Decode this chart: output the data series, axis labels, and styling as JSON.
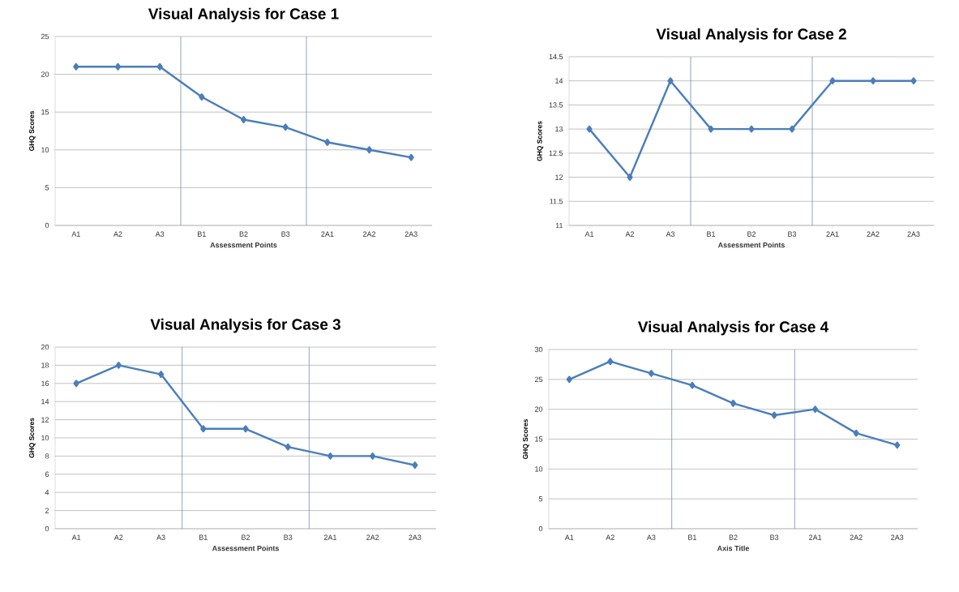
{
  "chart_data": [
    {
      "type": "line",
      "title": "Visual Analysis for Case 1",
      "xlabel": "Assessment Points",
      "ylabel": "GHQ Scores",
      "categories": [
        "A1",
        "A2",
        "A3",
        "B1",
        "B2",
        "B3",
        "2A1",
        "2A2",
        "2A3"
      ],
      "series": [
        {
          "color": "#4a7ebb",
          "values": [
            21,
            21,
            21,
            17,
            14,
            13,
            11,
            10,
            9
          ]
        }
      ],
      "ylim": [
        0,
        25
      ],
      "yticks": [
        0,
        5,
        10,
        15,
        20,
        25
      ],
      "grid": "y",
      "marker": "diamond",
      "line_style": "solid"
    },
    {
      "type": "line",
      "title": "Visual Analysis for Case 2",
      "xlabel": "Assessment Points",
      "ylabel": "GHQ Scores",
      "categories": [
        "A1",
        "A2",
        "A3",
        "B1",
        "B2",
        "B3",
        "2A1",
        "2A2",
        "2A3"
      ],
      "series": [
        {
          "color": "#4a7ebb",
          "values": [
            13,
            12,
            14,
            13,
            13,
            13,
            14,
            14,
            14
          ]
        }
      ],
      "ylim": [
        11,
        14.5
      ],
      "yticks": [
        11,
        11.5,
        12,
        12.5,
        13,
        13.5,
        14,
        14.5
      ],
      "grid": "y",
      "marker": "diamond",
      "line_style": "solid"
    },
    {
      "type": "line",
      "title": "Visual Analysis for Case 3",
      "xlabel": "Assessment Points",
      "ylabel": "GHQ Scores",
      "categories": [
        "A1",
        "A2",
        "A3",
        "B1",
        "B2",
        "B3",
        "2A1",
        "2A2",
        "2A3"
      ],
      "series": [
        {
          "color": "#4a7ebb",
          "values": [
            16,
            18,
            17,
            11,
            11,
            9,
            8,
            8,
            7
          ]
        }
      ],
      "ylim": [
        0,
        20
      ],
      "yticks": [
        0,
        2,
        4,
        6,
        8,
        10,
        12,
        14,
        16,
        18,
        20
      ],
      "grid": "y",
      "marker": "diamond",
      "line_style": "solid"
    },
    {
      "type": "line",
      "title": "Visual Analysis for Case 4",
      "xlabel": "Axis Title",
      "ylabel": "GHQ Scores",
      "categories": [
        "A1",
        "A2",
        "A3",
        "B1",
        "B2",
        "B3",
        "2A1",
        "2A2",
        "2A3"
      ],
      "series": [
        {
          "color": "#4a7ebb",
          "values": [
            25,
            28,
            26,
            24,
            21,
            19,
            20,
            16,
            14
          ]
        }
      ],
      "ylim": [
        0,
        30
      ],
      "yticks": [
        0,
        5,
        10,
        15,
        20,
        25,
        30
      ],
      "grid": "y",
      "marker": "diamond",
      "line_style": "solid"
    }
  ]
}
